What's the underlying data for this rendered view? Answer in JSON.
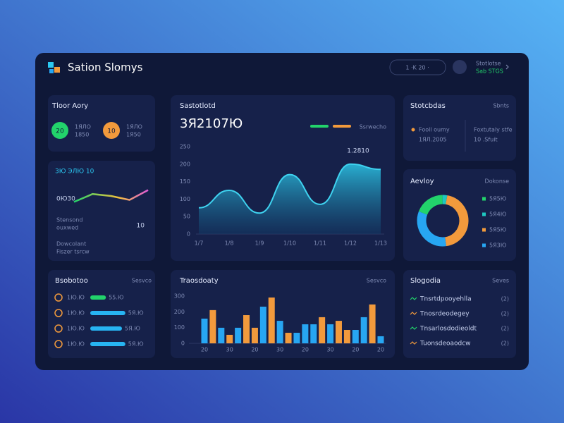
{
  "header": {
    "title": "Sation Slomys",
    "pill": "1  ·K  20  ·",
    "user_name": "Stotlotse",
    "user_role": "Sab STGS"
  },
  "stats": {
    "title": "Tloor Aory",
    "items": [
      {
        "value": "20",
        "line1": "1ЯЛО",
        "line2": "1850",
        "color": "#22d36b"
      },
      {
        "value": "10",
        "line1": "1ЯЛО",
        "line2": "1Я50",
        "color": "#f29a3c"
      }
    ]
  },
  "mini": {
    "title": "3Ю ЭЛЮ 10",
    "value": "0Ю30",
    "line1": "Stensond",
    "line2": "ouxwed",
    "side": "10",
    "line3": "Dowcolant",
    "line4": "Fiszer tsrcw",
    "chart": {
      "type": "line",
      "values": [
        2,
        6,
        5,
        3,
        8
      ],
      "ylim": [
        0,
        10
      ]
    }
  },
  "main_chart": {
    "type": "area",
    "title": "Sastotlotd",
    "total": "3Я2107Ю",
    "legend": "Ssrwecho",
    "legend_colors": [
      "#22d36b",
      "#f29a3c"
    ],
    "annotation": "1.2810",
    "categories": [
      "1/7",
      "1/8",
      "1/9",
      "1/10",
      "1/11",
      "1/12",
      "1/13"
    ],
    "values": [
      75,
      125,
      60,
      170,
      85,
      200,
      185
    ],
    "color": "#3fd3f0",
    "ylim": [
      0,
      250
    ],
    "yticks": [
      0,
      50,
      100,
      150,
      200,
      250
    ]
  },
  "status": {
    "title": "Stotcbdas",
    "action": "Sbnts",
    "items": [
      {
        "line1": "Fooll oumy",
        "line2": "1ЯЛ.2005"
      },
      {
        "line1": "Foxtutaly stfe",
        "line2": "10 .Sfuit"
      }
    ]
  },
  "donut_chart": {
    "type": "pie",
    "title": "Aevloy",
    "action": "Dokonse",
    "categories": [
      "5Я5Ю",
      "5Я4Ю",
      "5Я5Ю",
      "5Я3Ю"
    ],
    "values": [
      19,
      3,
      45,
      33
    ],
    "colors": [
      "#22d36b",
      "#1fc7c0",
      "#f29a3c",
      "#27a6f2"
    ]
  },
  "progress": {
    "title": "Bsobotoo",
    "action": "Sesvco",
    "max": 100,
    "rows": [
      {
        "label": "1Ю.Ю",
        "value": 37,
        "value_label": "55.Ю",
        "color": "#22d36b"
      },
      {
        "label": "1Ю.Ю",
        "value": 83,
        "value_label": "5Я.Ю",
        "color": "#27b4f2"
      },
      {
        "label": "1Ю.Ю",
        "value": 75,
        "value_label": "5Я.Ю",
        "color": "#27b4f2"
      },
      {
        "label": "1Ю.Ю",
        "value": 83,
        "value_label": "5Я.Ю",
        "color": "#27b4f2"
      }
    ]
  },
  "bar_chart": {
    "type": "bar",
    "title": "Traosdoaty",
    "action": "Sesvco",
    "categories": [
      "20",
      null,
      null,
      "30",
      null,
      null,
      "20",
      null,
      null,
      "30",
      null,
      null,
      "20",
      null,
      null,
      "30",
      null,
      null,
      "20",
      null,
      null,
      "20"
    ],
    "values": [
      157,
      211,
      99,
      54,
      99,
      179,
      99,
      233,
      291,
      143,
      67,
      67,
      121,
      121,
      166,
      121,
      143,
      85,
      85,
      166,
      247,
      45
    ],
    "colors": [
      "#27a6f2",
      "#f29a3c",
      "#27a6f2",
      "#f29a3c",
      "#27a6f2",
      "#f29a3c",
      "#f29a3c",
      "#27a6f2",
      "#f29a3c",
      "#27a6f2",
      "#f29a3c",
      "#27a6f2",
      "#27a6f2",
      "#27a6f2",
      "#f29a3c",
      "#27a6f2",
      "#f29a3c",
      "#f29a3c",
      "#27a6f2",
      "#27a6f2",
      "#f29a3c",
      "#27a6f2"
    ],
    "ylim": [
      0,
      300
    ],
    "yticks": [
      0,
      100,
      200,
      300
    ]
  },
  "list": {
    "title": "Slogodia",
    "action": "Seves",
    "rows": [
      {
        "text": "Tnsrtdpooyehlla",
        "count": "(2)"
      },
      {
        "text": "Tnosrdeodegey",
        "count": "(2)"
      },
      {
        "text": "Tnsarlosdodieoldt",
        "count": "(2)"
      },
      {
        "text": "Tuonsdeoaodcw",
        "count": "(2)"
      }
    ]
  }
}
